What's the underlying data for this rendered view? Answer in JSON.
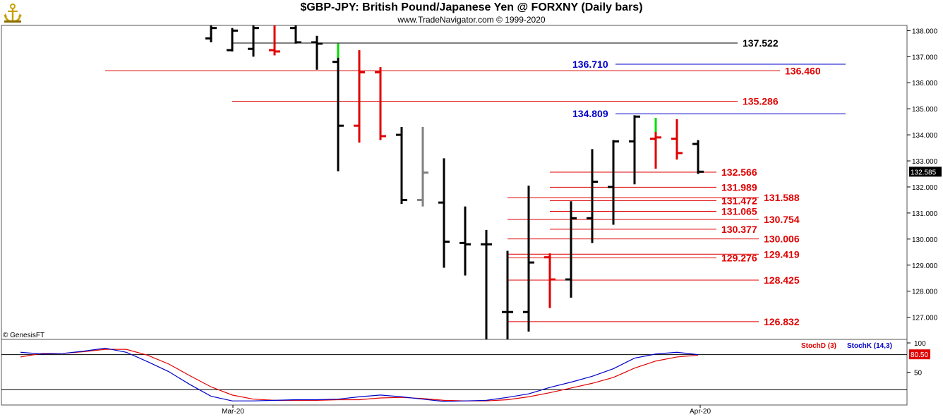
{
  "header": {
    "title": "$GBP-JPY:  British Pound/Japanese Yen @ FORXNY  (Daily bars)",
    "subtitle": "www.TradeNavigator.com © 1999-2020",
    "logo_icon": "gold-anchor-logo-icon",
    "watermark": "© GenesisFT"
  },
  "colors": {
    "up_bar": "#000000",
    "down_bar": "#e00000",
    "neutral_bar": "#808080",
    "first_bar": "#00dd00",
    "red_level": "#e00000",
    "blue_level": "#0000c8",
    "black_level": "#000000",
    "stoch_d": "#e00000",
    "stoch_k": "#0000c8"
  },
  "chart_data": [
    {
      "type": "ohlc",
      "title": "$GBP-JPY:  British Pound/Japanese Yen @ FORXNY  (Daily bars)",
      "ylim": [
        126.15,
        138.2
      ],
      "y_ticks": [
        "127.000",
        "128.000",
        "129.000",
        "130.000",
        "131.000",
        "132.000",
        "133.000",
        "134.000",
        "135.000",
        "136.000",
        "137.000",
        "138.000"
      ],
      "x_ticks": [
        "Mar-20",
        "Apr-20"
      ],
      "last_price": "132.585",
      "bars": [
        {
          "o": 137.7,
          "h": 138.2,
          "l": 137.55,
          "c": 138.1,
          "color": "up"
        },
        {
          "o": 137.25,
          "h": 138.1,
          "l": 137.2,
          "c": 138.0,
          "color": "up"
        },
        {
          "o": 137.3,
          "h": 138.2,
          "l": 137.0,
          "c": 138.1,
          "color": "up"
        },
        {
          "o": 137.25,
          "h": 138.2,
          "l": 137.05,
          "c": 137.2,
          "color": "down"
        },
        {
          "o": 138.1,
          "h": 138.2,
          "l": 137.5,
          "c": 137.55,
          "color": "up"
        },
        {
          "o": 137.55,
          "h": 137.8,
          "l": 136.5,
          "c": 137.5,
          "color": "up"
        },
        {
          "o": 136.8,
          "h": 137.5,
          "l": 132.6,
          "c": 134.35,
          "color": "up",
          "first_tick": true
        },
        {
          "o": 134.35,
          "h": 137.25,
          "l": 133.7,
          "c": 136.4,
          "color": "down"
        },
        {
          "o": 136.4,
          "h": 136.6,
          "l": 133.8,
          "c": 133.95,
          "color": "down"
        },
        {
          "o": 134.0,
          "h": 134.3,
          "l": 131.35,
          "c": 131.5,
          "color": "up"
        },
        {
          "o": 131.5,
          "h": 134.3,
          "l": 131.25,
          "c": 132.55,
          "color": "neutral"
        },
        {
          "o": 131.4,
          "h": 133.1,
          "l": 128.9,
          "c": 129.9,
          "color": "up"
        },
        {
          "o": 129.85,
          "h": 131.25,
          "l": 128.6,
          "c": 129.8,
          "color": "up"
        },
        {
          "o": 129.8,
          "h": 130.35,
          "l": 126.15,
          "c": 129.8,
          "color": "up"
        },
        {
          "o": 127.2,
          "h": 129.55,
          "l": 126.15,
          "c": 127.2,
          "color": "up"
        },
        {
          "o": 127.2,
          "h": 132.05,
          "l": 126.45,
          "c": 129.1,
          "color": "up"
        },
        {
          "o": 129.3,
          "h": 129.45,
          "l": 127.35,
          "c": 128.45,
          "color": "down"
        },
        {
          "o": 128.45,
          "h": 131.45,
          "l": 127.75,
          "c": 130.8,
          "color": "up"
        },
        {
          "o": 130.8,
          "h": 133.45,
          "l": 129.85,
          "c": 132.2,
          "color": "up"
        },
        {
          "o": 132.0,
          "h": 133.8,
          "l": 130.55,
          "c": 133.75,
          "color": "up"
        },
        {
          "o": 133.75,
          "h": 134.75,
          "l": 132.1,
          "c": 134.7,
          "color": "up"
        },
        {
          "o": 133.85,
          "h": 134.65,
          "l": 132.7,
          "c": 133.9,
          "color": "down",
          "first_tick": true
        },
        {
          "o": 133.85,
          "h": 134.6,
          "l": 133.05,
          "c": 133.3,
          "color": "down"
        },
        {
          "o": 133.65,
          "h": 133.8,
          "l": 132.5,
          "c": 132.585,
          "color": "up"
        }
      ],
      "levels": [
        {
          "value": 137.522,
          "label": "137.522",
          "color": "black"
        },
        {
          "value": 136.71,
          "label": "136.710",
          "color": "blue"
        },
        {
          "value": 136.46,
          "label": "136.460",
          "color": "red"
        },
        {
          "value": 135.286,
          "label": "135.286",
          "color": "red"
        },
        {
          "value": 134.809,
          "label": "134.809",
          "color": "blue"
        },
        {
          "value": 132.566,
          "label": "132.566",
          "color": "red"
        },
        {
          "value": 131.989,
          "label": "131.989",
          "color": "red"
        },
        {
          "value": 131.588,
          "label": "131.588",
          "color": "red"
        },
        {
          "value": 131.472,
          "label": "131.472",
          "color": "red"
        },
        {
          "value": 131.065,
          "label": "131.065",
          "color": "red"
        },
        {
          "value": 130.754,
          "label": "130.754",
          "color": "red"
        },
        {
          "value": 130.377,
          "label": "130.377",
          "color": "red"
        },
        {
          "value": 130.006,
          "label": "130.006",
          "color": "red"
        },
        {
          "value": 129.419,
          "label": "129.419",
          "color": "red"
        },
        {
          "value": 129.276,
          "label": "129.276",
          "color": "red"
        },
        {
          "value": 128.425,
          "label": "128.425",
          "color": "red"
        },
        {
          "value": 126.832,
          "label": "126.832",
          "color": "red"
        }
      ]
    },
    {
      "type": "line",
      "ylim": [
        0,
        100
      ],
      "y_ticks": [
        "100",
        "50"
      ],
      "reference_lines": [
        80,
        20
      ],
      "last_value": "80.50",
      "legend": [
        "StochD (3)",
        "StochK (14,3)"
      ],
      "series": [
        {
          "name": "StochD (3)",
          "color": "red",
          "values": [
            [
              0,
              76
            ],
            [
              1,
              82
            ],
            [
              2,
              82
            ],
            [
              3,
              85
            ],
            [
              4,
              89
            ],
            [
              5,
              89
            ],
            [
              6,
              79
            ],
            [
              7,
              64
            ],
            [
              8,
              44
            ],
            [
              9,
              25
            ],
            [
              10,
              11
            ],
            [
              11,
              4
            ],
            [
              12,
              2
            ],
            [
              13,
              2
            ],
            [
              14,
              2
            ],
            [
              15,
              3
            ],
            [
              16,
              3
            ],
            [
              17,
              6
            ],
            [
              18,
              7
            ],
            [
              19,
              5
            ],
            [
              20,
              2
            ],
            [
              21,
              1
            ],
            [
              22,
              1
            ],
            [
              23,
              3
            ],
            [
              24,
              8
            ],
            [
              25,
              15
            ],
            [
              26,
              23
            ],
            [
              27,
              31
            ],
            [
              28,
              41
            ],
            [
              29,
              57
            ],
            [
              30,
              69
            ],
            [
              31,
              76
            ],
            [
              32,
              79
            ]
          ]
        },
        {
          "name": "StochK (14,3)",
          "color": "blue",
          "values": [
            [
              0,
              84
            ],
            [
              1,
              81
            ],
            [
              2,
              82
            ],
            [
              3,
              86
            ],
            [
              4,
              91
            ],
            [
              5,
              84
            ],
            [
              6,
              68
            ],
            [
              7,
              51
            ],
            [
              8,
              29
            ],
            [
              9,
              9
            ],
            [
              10,
              1
            ],
            [
              11,
              1
            ],
            [
              12,
              2
            ],
            [
              13,
              3
            ],
            [
              14,
              3
            ],
            [
              15,
              4
            ],
            [
              16,
              8
            ],
            [
              17,
              11
            ],
            [
              18,
              8
            ],
            [
              19,
              4
            ],
            [
              20,
              0
            ],
            [
              21,
              1
            ],
            [
              22,
              2
            ],
            [
              23,
              7
            ],
            [
              24,
              13
            ],
            [
              25,
              24
            ],
            [
              26,
              33
            ],
            [
              27,
              43
            ],
            [
              28,
              56
            ],
            [
              29,
              74
            ],
            [
              30,
              81
            ],
            [
              31,
              84
            ],
            [
              32,
              80
            ]
          ]
        }
      ]
    }
  ]
}
